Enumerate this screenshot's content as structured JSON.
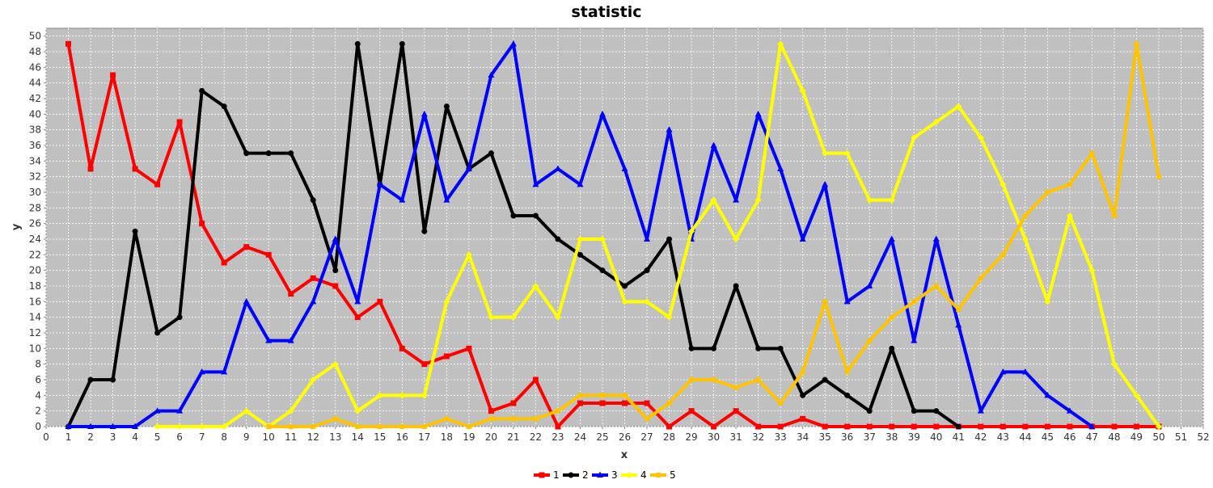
{
  "chart_data": {
    "type": "line",
    "title": "statistic",
    "xlabel": "x",
    "ylabel": "y",
    "xlim": [
      0,
      52
    ],
    "ylim": [
      0,
      51
    ],
    "x_ticks": [
      0,
      1,
      2,
      3,
      4,
      5,
      6,
      7,
      8,
      9,
      10,
      11,
      12,
      13,
      14,
      15,
      16,
      17,
      18,
      19,
      20,
      21,
      22,
      23,
      24,
      25,
      26,
      27,
      28,
      29,
      30,
      31,
      32,
      33,
      34,
      35,
      36,
      37,
      38,
      39,
      40,
      41,
      42,
      43,
      44,
      45,
      46,
      47,
      48,
      49,
      50,
      51,
      52
    ],
    "y_ticks": [
      0,
      2,
      4,
      6,
      8,
      10,
      12,
      14,
      16,
      18,
      20,
      22,
      24,
      26,
      28,
      30,
      32,
      34,
      36,
      38,
      40,
      42,
      44,
      46,
      48,
      50
    ],
    "grid": true,
    "legend_position": "bottom",
    "x": [
      1,
      2,
      3,
      4,
      5,
      6,
      7,
      8,
      9,
      10,
      11,
      12,
      13,
      14,
      15,
      16,
      17,
      18,
      19,
      20,
      21,
      22,
      23,
      24,
      25,
      26,
      27,
      28,
      29,
      30,
      31,
      32,
      33,
      34,
      35,
      36,
      37,
      38,
      39,
      40,
      41,
      42,
      43,
      44,
      45,
      46,
      47,
      48,
      49,
      50
    ],
    "series": [
      {
        "name": "1",
        "color": "#ff0000",
        "marker": "square",
        "values": [
          49,
          33,
          45,
          33,
          31,
          39,
          26,
          21,
          23,
          22,
          17,
          19,
          18,
          14,
          16,
          10,
          8,
          9,
          10,
          2,
          3,
          6,
          0,
          3,
          3,
          3,
          3,
          0,
          2,
          0,
          2,
          0,
          0,
          1,
          0,
          0,
          0,
          0,
          0,
          0,
          0,
          0,
          0,
          0,
          0,
          0,
          0,
          0,
          0,
          0
        ]
      },
      {
        "name": "2",
        "color": "#000000",
        "marker": "circle",
        "values": [
          0,
          6,
          6,
          25,
          12,
          14,
          43,
          41,
          35,
          35,
          35,
          29,
          20,
          49,
          31,
          49,
          25,
          41,
          33,
          35,
          27,
          27,
          24,
          22,
          20,
          18,
          20,
          24,
          10,
          10,
          18,
          10,
          10,
          4,
          6,
          4,
          2,
          10,
          2,
          2,
          0,
          null,
          null,
          null,
          null,
          null,
          null,
          null,
          null,
          null
        ]
      },
      {
        "name": "3",
        "color": "#0000ff",
        "marker": "triangle",
        "values": [
          0,
          0,
          0,
          0,
          2,
          2,
          7,
          7,
          16,
          11,
          11,
          16,
          24,
          16,
          31,
          29,
          40,
          29,
          33,
          45,
          49,
          31,
          33,
          31,
          40,
          33,
          24,
          38,
          24,
          36,
          29,
          40,
          33,
          24,
          31,
          16,
          18,
          24,
          11,
          24,
          13,
          2,
          7,
          7,
          4,
          2,
          0,
          null,
          null,
          null
        ]
      },
      {
        "name": "4",
        "color": "#ffff00",
        "marker": "diamond",
        "values": [
          null,
          null,
          null,
          null,
          0,
          0,
          0,
          0,
          2,
          0,
          2,
          6,
          8,
          2,
          4,
          4,
          4,
          16,
          22,
          14,
          14,
          18,
          14,
          24,
          24,
          16,
          16,
          14,
          25,
          29,
          24,
          29,
          49,
          43,
          35,
          35,
          29,
          29,
          37,
          39,
          41,
          37,
          31,
          24,
          16,
          27,
          20,
          8,
          4,
          0
        ]
      },
      {
        "name": "5",
        "color": "#ffc400",
        "marker": "none",
        "values": [
          null,
          null,
          null,
          null,
          null,
          null,
          null,
          null,
          null,
          0,
          0,
          0,
          1,
          0,
          0,
          0,
          0,
          1,
          0,
          1,
          1,
          1,
          2,
          4,
          4,
          4,
          1,
          3,
          6,
          6,
          5,
          6,
          3,
          7,
          16,
          7,
          11,
          14,
          16,
          18,
          15,
          19,
          22,
          27,
          30,
          31,
          35,
          27,
          49,
          32
        ]
      }
    ]
  }
}
